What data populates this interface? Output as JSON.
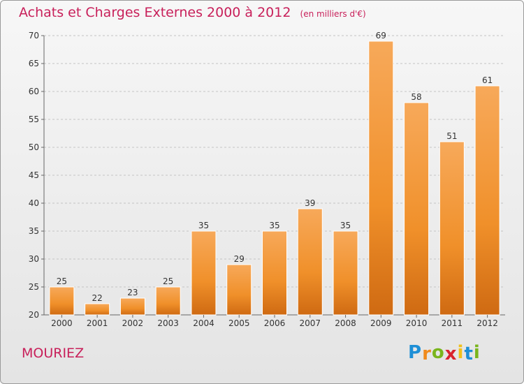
{
  "chart_data": {
    "type": "bar",
    "title": "Achats et Charges Externes 2000 à 2012",
    "unit_note": "(en milliers d'€)",
    "categories": [
      "2000",
      "2001",
      "2002",
      "2003",
      "2004",
      "2005",
      "2006",
      "2007",
      "2008",
      "2009",
      "2010",
      "2011",
      "2012"
    ],
    "values": [
      25,
      22,
      23,
      25,
      35,
      29,
      35,
      39,
      35,
      69,
      58,
      51,
      61
    ],
    "ylim": [
      20,
      70
    ],
    "yticks": [
      20,
      25,
      30,
      35,
      40,
      45,
      50,
      55,
      60,
      65,
      70
    ],
    "grid": true,
    "bar_color": "#f0902a",
    "bar_color_light": "#f7a95a",
    "bar_color_dark": "#cf6a12"
  },
  "town": "MOURIEZ",
  "logo": {
    "letters": [
      "P",
      "r",
      "o",
      "x",
      "i",
      "t",
      "i"
    ],
    "colors": [
      "#1e8fd6",
      "#f08a1c",
      "#7ab51d",
      "#d9232e",
      "#f0c01c",
      "#1e8fd6",
      "#7ab51d"
    ]
  }
}
